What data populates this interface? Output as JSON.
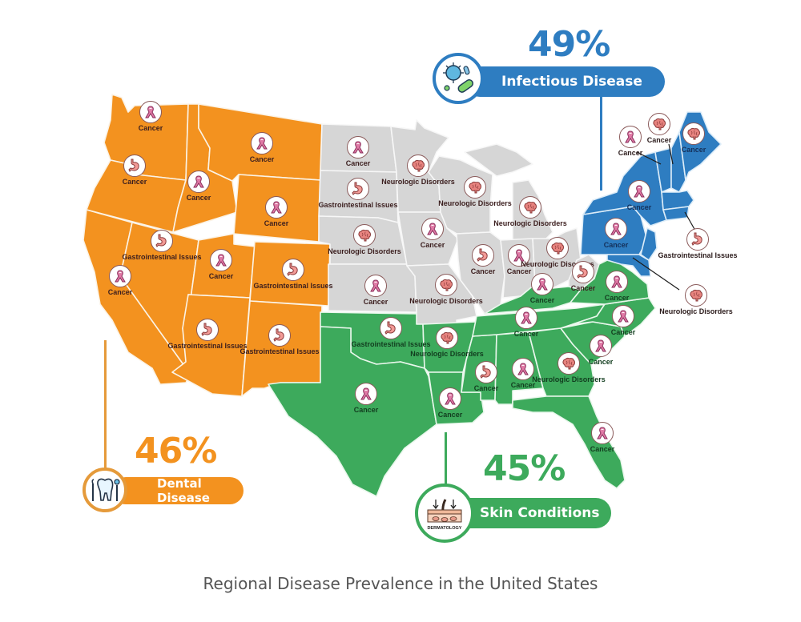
{
  "caption": "Regional Disease Prevalence in the United States",
  "colors": {
    "west": "#f3921f",
    "midwest": "#d6d6d6",
    "south": "#3daa5c",
    "northeast": "#2e7dc1",
    "ribbon": "#e07aa6",
    "stomach": "#f29a96",
    "brain": "#e7837f"
  },
  "callouts": {
    "northeast": {
      "percent": "49%",
      "label": "Infectious Disease",
      "icon": "virus-bacteria-icon",
      "color": "#2e7dc1"
    },
    "west": {
      "percent": "46%",
      "label": "Dental Disease",
      "icon": "tooth-dental-tools-icon",
      "color": "#f3921f"
    },
    "south": {
      "percent": "45%",
      "label": "Skin Conditions",
      "icon": "dermatology-skin-icon",
      "icon_text": "DERMATOLOGY",
      "color": "#3daa5c"
    }
  },
  "states": {
    "west": [
      {
        "name": "washington",
        "icon": "ribbon",
        "label": "Cancer"
      },
      {
        "name": "oregon",
        "icon": "stomach",
        "label": "Cancer"
      },
      {
        "name": "california",
        "icon": "ribbon",
        "label": "Cancer"
      },
      {
        "name": "idaho",
        "icon": "ribbon",
        "label": "Cancer"
      },
      {
        "name": "nevada",
        "icon": "stomach",
        "label": "Gastrointestinal Issues"
      },
      {
        "name": "montana",
        "icon": "ribbon",
        "label": "Cancer"
      },
      {
        "name": "wyoming",
        "icon": "ribbon",
        "label": "Cancer"
      },
      {
        "name": "utah",
        "icon": "ribbon",
        "label": "Cancer"
      },
      {
        "name": "colorado",
        "icon": "stomach",
        "label": "Gastrointestinal Issues"
      },
      {
        "name": "arizona",
        "icon": "stomach",
        "label": "Gastrointestinal Issues"
      },
      {
        "name": "new-mexico",
        "icon": "stomach",
        "label": "Gastrointestinal Issues"
      }
    ],
    "midwest": [
      {
        "name": "north-dakota",
        "icon": "ribbon",
        "label": "Cancer"
      },
      {
        "name": "south-dakota",
        "icon": "stomach",
        "label": "Gastrointestinal Issues"
      },
      {
        "name": "nebraska",
        "icon": "brain",
        "label": "Neurologic Disorders"
      },
      {
        "name": "kansas",
        "icon": "ribbon",
        "label": "Cancer"
      },
      {
        "name": "minnesota",
        "icon": "brain",
        "label": "Neurologic Disorders"
      },
      {
        "name": "iowa",
        "icon": "ribbon",
        "label": "Cancer"
      },
      {
        "name": "missouri",
        "icon": "brain",
        "label": "Neurologic Disorders"
      },
      {
        "name": "wisconsin",
        "icon": "brain",
        "label": "Neurologic Disorders"
      },
      {
        "name": "michigan",
        "icon": "brain",
        "label": "Neurologic Disorders"
      },
      {
        "name": "illinois",
        "icon": "stomach",
        "label": "Cancer"
      },
      {
        "name": "indiana",
        "icon": "ribbon",
        "label": "Cancer"
      },
      {
        "name": "ohio",
        "icon": "brain",
        "label": "Neurologic Disorders"
      },
      {
        "name": "west-virginia",
        "icon": "stomach",
        "label": "Cancer"
      }
    ],
    "south": [
      {
        "name": "oklahoma",
        "icon": "stomach",
        "label": "Gastrointestinal Issues"
      },
      {
        "name": "texas",
        "icon": "ribbon",
        "label": "Cancer"
      },
      {
        "name": "arkansas",
        "icon": "brain",
        "label": "Neurologic Disorders"
      },
      {
        "name": "louisiana",
        "icon": "ribbon",
        "label": "Cancer"
      },
      {
        "name": "mississippi",
        "icon": "stomach",
        "label": "Cancer"
      },
      {
        "name": "alabama",
        "icon": "ribbon",
        "label": "Cancer"
      },
      {
        "name": "georgia",
        "icon": "brain",
        "label": "Neurologic Disorders"
      },
      {
        "name": "florida",
        "icon": "ribbon",
        "label": "Cancer"
      },
      {
        "name": "tennessee",
        "icon": "ribbon",
        "label": "Cancer"
      },
      {
        "name": "kentucky",
        "icon": "ribbon",
        "label": "Cancer"
      },
      {
        "name": "south-carolina",
        "icon": "ribbon",
        "label": "Cancer"
      },
      {
        "name": "north-carolina",
        "icon": "ribbon",
        "label": "Cancer"
      },
      {
        "name": "virginia",
        "icon": "ribbon",
        "label": "Cancer"
      }
    ],
    "northeast": [
      {
        "name": "pennsylvania",
        "icon": "ribbon",
        "label": "Cancer"
      },
      {
        "name": "new-york",
        "icon": "ribbon",
        "label": "Cancer"
      },
      {
        "name": "vermont",
        "icon": "ribbon",
        "label": "Cancer"
      },
      {
        "name": "new-hampshire",
        "icon": "brain",
        "label": "Cancer"
      },
      {
        "name": "maine",
        "icon": "brain",
        "label": "Cancer"
      },
      {
        "name": "rhode-island-connecticut",
        "icon": "stomach",
        "label": "Gastrointestinal Issues"
      },
      {
        "name": "maryland-delaware",
        "icon": "brain",
        "label": "Neurologic Disorders"
      }
    ]
  }
}
